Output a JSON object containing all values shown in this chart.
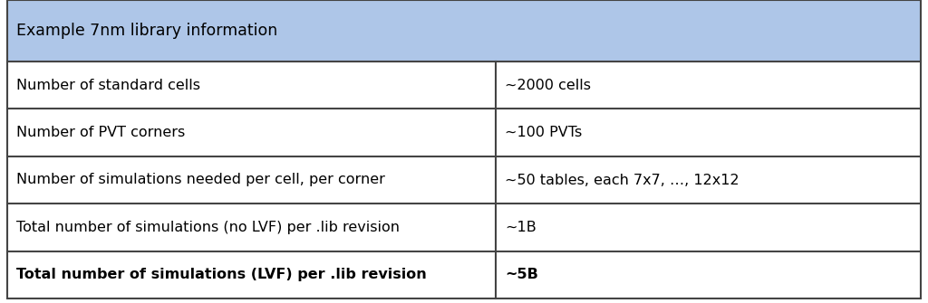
{
  "header_text": "Example 7nm library information",
  "header_bg": "#aec6e8",
  "rows": [
    [
      "Number of standard cells",
      "~2000 cells",
      false
    ],
    [
      "Number of PVT corners",
      "~100 PVTs",
      false
    ],
    [
      "Number of simulations needed per cell, per corner",
      "~50 tables, each 7x7, …, 12x12",
      false
    ],
    [
      "Total number of simulations (no LVF) per .lib revision",
      "~1B",
      false
    ],
    [
      "Total number of simulations (LVF) per .lib revision",
      "~5B",
      true
    ]
  ],
  "col_split": 0.535,
  "row_bg": "#ffffff",
  "border_color": "#444444",
  "text_color": "#000000",
  "header_fontsize": 12.5,
  "cell_fontsize": 11.5,
  "fig_width": 10.24,
  "fig_height": 3.35
}
